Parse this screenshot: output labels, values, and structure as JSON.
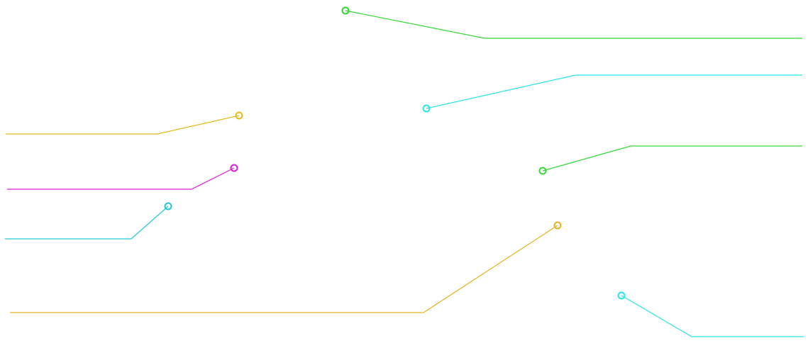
{
  "callouts": [
    {
      "id": "callout-1",
      "color": "#2fd82f"
    },
    {
      "id": "callout-2",
      "color": "#27e5e8"
    },
    {
      "id": "callout-3",
      "color": "#e8b81a"
    },
    {
      "id": "callout-4",
      "color": "#d91ed9"
    },
    {
      "id": "callout-5",
      "color": "#24c9d6"
    },
    {
      "id": "callout-6",
      "color": "#38d838"
    },
    {
      "id": "callout-7",
      "color": "#e6b21e"
    },
    {
      "id": "callout-8",
      "color": "#2ae2e6"
    }
  ]
}
